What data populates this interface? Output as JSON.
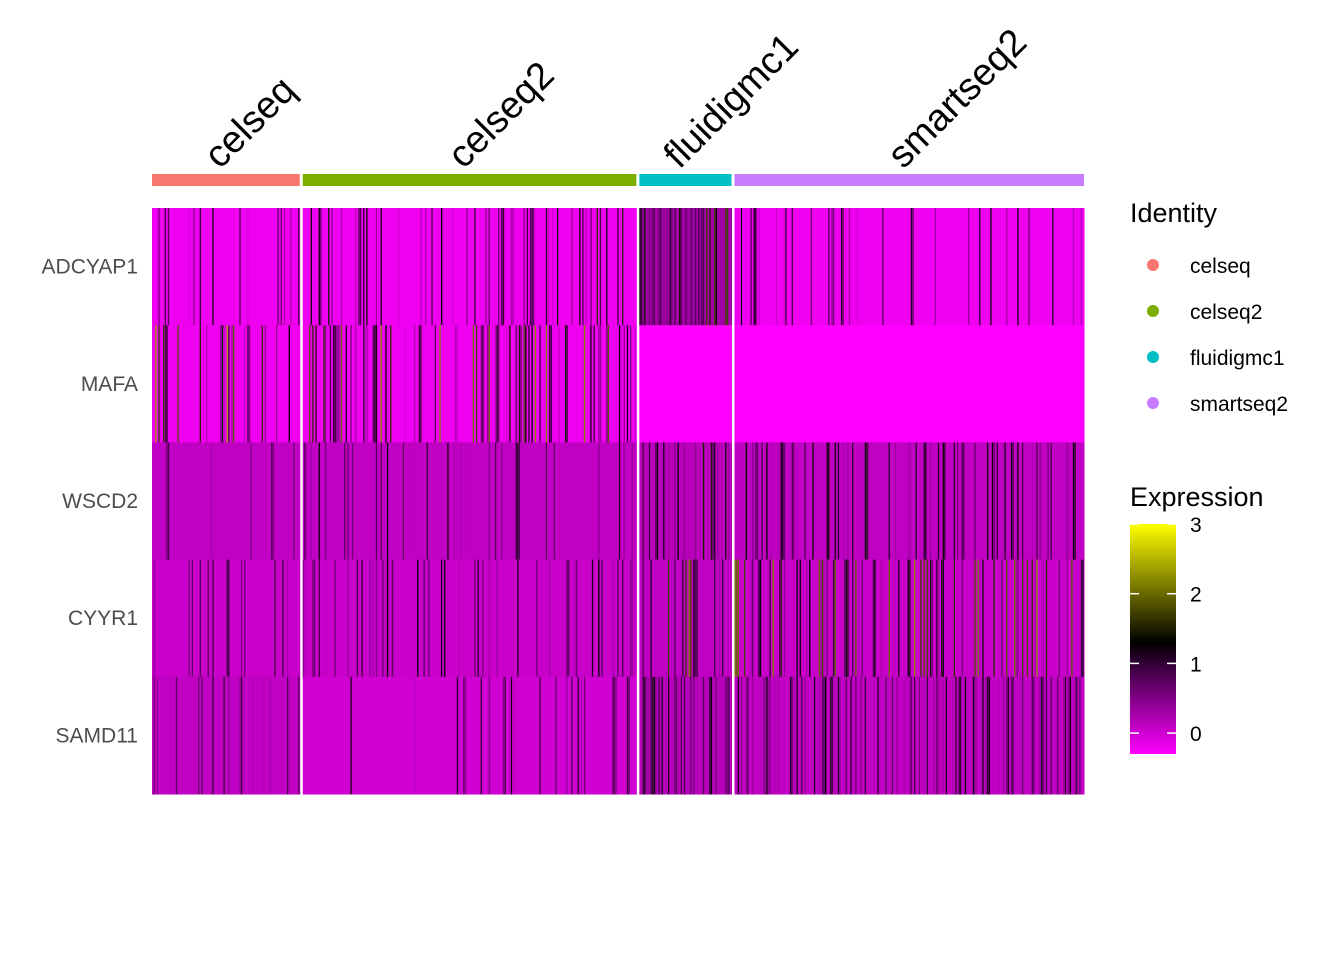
{
  "chart_data": {
    "type": "heatmap",
    "title": "",
    "groups": [
      {
        "name": "celseq",
        "color": "#F8766D",
        "cells": 93
      },
      {
        "name": "celseq2",
        "color": "#7CAE00",
        "cells": 210
      },
      {
        "name": "fluidigmc1",
        "color": "#00BFC4",
        "cells": 58
      },
      {
        "name": "smartseq2",
        "color": "#C77CFF",
        "cells": 220
      }
    ],
    "genes": [
      "ADCYAP1",
      "MAFA",
      "WSCD2",
      "CYYR1",
      "SAMD11"
    ],
    "gene_profiles": {
      "ADCYAP1": {
        "celseq": {
          "base": -0.2,
          "hi_frac": 0.18,
          "hi_max": 1.3
        },
        "celseq2": {
          "base": -0.2,
          "hi_frac": 0.28,
          "hi_max": 1.6
        },
        "fluidigmc1": {
          "base": 0.3,
          "hi_frac": 0.55,
          "hi_max": 1.9
        },
        "smartseq2": {
          "base": -0.2,
          "hi_frac": 0.15,
          "hi_max": 1.3
        }
      },
      "MAFA": {
        "celseq": {
          "base": -0.2,
          "hi_frac": 0.25,
          "hi_max": 2.6
        },
        "celseq2": {
          "base": -0.2,
          "hi_frac": 0.3,
          "hi_max": 2.3
        },
        "fluidigmc1": {
          "base": -0.3,
          "hi_frac": 0.0,
          "hi_max": 0.0
        },
        "smartseq2": {
          "base": -0.3,
          "hi_frac": 0.0,
          "hi_max": 0.0
        }
      },
      "WSCD2": {
        "celseq": {
          "base": 0.1,
          "hi_frac": 0.1,
          "hi_max": 1.0
        },
        "celseq2": {
          "base": 0.1,
          "hi_frac": 0.15,
          "hi_max": 1.3
        },
        "fluidigmc1": {
          "base": 0.15,
          "hi_frac": 0.35,
          "hi_max": 1.5
        },
        "smartseq2": {
          "base": 0.1,
          "hi_frac": 0.25,
          "hi_max": 1.4
        }
      },
      "CYYR1": {
        "celseq": {
          "base": 0.05,
          "hi_frac": 0.08,
          "hi_max": 1.0
        },
        "celseq2": {
          "base": 0.05,
          "hi_frac": 0.2,
          "hi_max": 1.3
        },
        "fluidigmc1": {
          "base": 0.1,
          "hi_frac": 0.25,
          "hi_max": 2.2
        },
        "smartseq2": {
          "base": 0.05,
          "hi_frac": 0.3,
          "hi_max": 2.3
        }
      },
      "SAMD11": {
        "celseq": {
          "base": 0.1,
          "hi_frac": 0.25,
          "hi_max": 1.1
        },
        "celseq2": {
          "base": 0.0,
          "hi_frac": 0.12,
          "hi_max": 1.2
        },
        "fluidigmc1": {
          "base": 0.15,
          "hi_frac": 0.45,
          "hi_max": 1.3
        },
        "smartseq2": {
          "base": 0.1,
          "hi_frac": 0.4,
          "hi_max": 1.3
        }
      }
    },
    "color_scale": {
      "stops": [
        {
          "value": -0.3,
          "color": "#FF00FF"
        },
        {
          "value": 0.75,
          "color": "#5A0060"
        },
        {
          "value": 1.3,
          "color": "#000000"
        },
        {
          "value": 3.0,
          "color": "#FFFF00"
        }
      ],
      "min": -0.3,
      "max": 3.0
    },
    "legend_identity_title": "Identity",
    "legend_expression_title": "Expression",
    "expression_ticks": [
      "0",
      "1",
      "2",
      "3"
    ],
    "expression_tick_values": [
      0,
      1,
      2,
      3
    ]
  }
}
